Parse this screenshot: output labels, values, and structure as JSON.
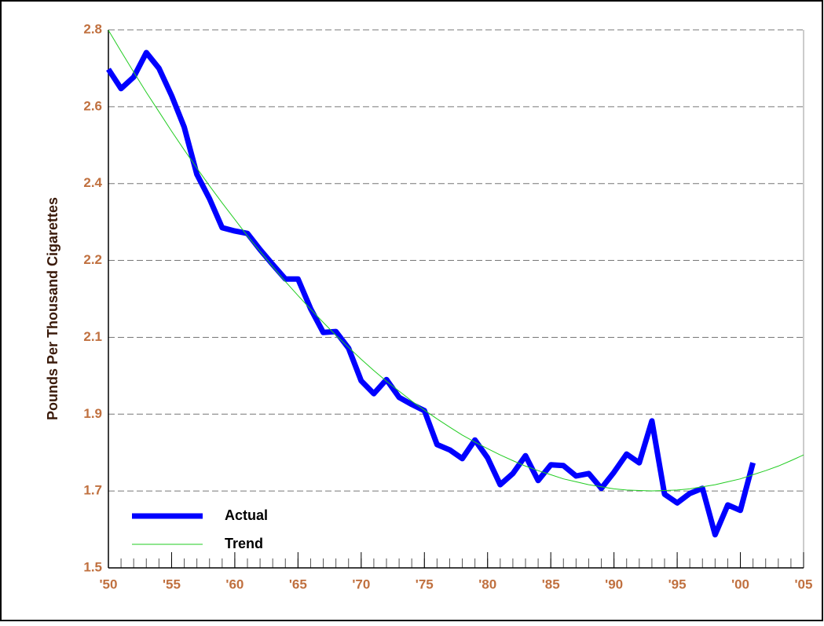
{
  "chart_data": {
    "type": "line",
    "y_label": "Pounds Per Thousand Cigarettes",
    "x": [
      1950,
      1951,
      1952,
      1953,
      1954,
      1955,
      1956,
      1957,
      1958,
      1959,
      1960,
      1961,
      1962,
      1963,
      1964,
      1965,
      1966,
      1967,
      1968,
      1969,
      1970,
      1971,
      1972,
      1973,
      1974,
      1975,
      1976,
      1977,
      1978,
      1979,
      1980,
      1981,
      1982,
      1983,
      1984,
      1985,
      1986,
      1987,
      1988,
      1989,
      1990,
      1991,
      1992,
      1993,
      1994,
      1995,
      1996,
      1997,
      1998,
      1999,
      2000,
      2001,
      2002,
      2003,
      2004,
      2005
    ],
    "series": [
      {
        "name": "Actual",
        "color": "#0000ff",
        "width": 7,
        "values": [
          2.705,
          2.658,
          2.686,
          2.745,
          2.707,
          2.641,
          2.565,
          2.451,
          2.392,
          2.322,
          2.314,
          2.308,
          2.269,
          2.233,
          2.198,
          2.198,
          2.126,
          2.069,
          2.071,
          2.031,
          1.952,
          1.921,
          1.955,
          1.912,
          1.895,
          1.88,
          1.798,
          1.785,
          1.764,
          1.809,
          1.766,
          1.701,
          1.728,
          1.771,
          1.711,
          1.749,
          1.747,
          1.722,
          1.728,
          1.692,
          1.731,
          1.775,
          1.754,
          1.855,
          1.678,
          1.657,
          1.68,
          1.692,
          1.58,
          1.652,
          1.639,
          1.754,
          null,
          null,
          null,
          null
        ]
      },
      {
        "name": "Trend",
        "color": "#22cc22",
        "width": 1,
        "values": [
          2.799,
          2.748,
          2.698,
          2.649,
          2.602,
          2.555,
          2.51,
          2.466,
          2.423,
          2.382,
          2.342,
          2.302,
          2.265,
          2.228,
          2.192,
          2.158,
          2.125,
          2.093,
          2.062,
          2.033,
          2.004,
          1.977,
          1.951,
          1.927,
          1.903,
          1.881,
          1.86,
          1.84,
          1.821,
          1.804,
          1.788,
          1.773,
          1.759,
          1.746,
          1.735,
          1.725,
          1.715,
          1.708,
          1.701,
          1.696,
          1.691,
          1.688,
          1.687,
          1.686,
          1.687,
          1.688,
          1.691,
          1.696,
          1.701,
          1.708,
          1.715,
          1.725,
          1.735,
          1.746,
          1.759,
          1.773
        ]
      }
    ],
    "xlim": [
      1950,
      2005
    ],
    "xticks": [
      {
        "value": 1950,
        "label": "'50"
      },
      {
        "value": 1955,
        "label": "'55"
      },
      {
        "value": 1960,
        "label": "'60"
      },
      {
        "value": 1965,
        "label": "'65"
      },
      {
        "value": 1970,
        "label": "'70"
      },
      {
        "value": 1975,
        "label": "'75"
      },
      {
        "value": 1980,
        "label": "'80"
      },
      {
        "value": 1985,
        "label": "'85"
      },
      {
        "value": 1990,
        "label": "'90"
      },
      {
        "value": 1995,
        "label": "'95"
      },
      {
        "value": 2000,
        "label": "'00"
      },
      {
        "value": 2005,
        "label": "'05"
      }
    ],
    "ylim": [
      1.5,
      2.8
    ],
    "yticks": [
      1.5,
      {
        "value": 1.6857,
        "label": "1.7"
      },
      {
        "value": 1.8714,
        "label": "1.9"
      },
      {
        "value": 2.0571,
        "label": "2.1"
      },
      {
        "value": 2.2429,
        "label": "2.2"
      },
      {
        "value": 2.4286,
        "label": "2.4"
      },
      {
        "value": 2.6143,
        "label": "2.6"
      },
      2.8
    ],
    "grid": true,
    "legend": "lower left"
  }
}
